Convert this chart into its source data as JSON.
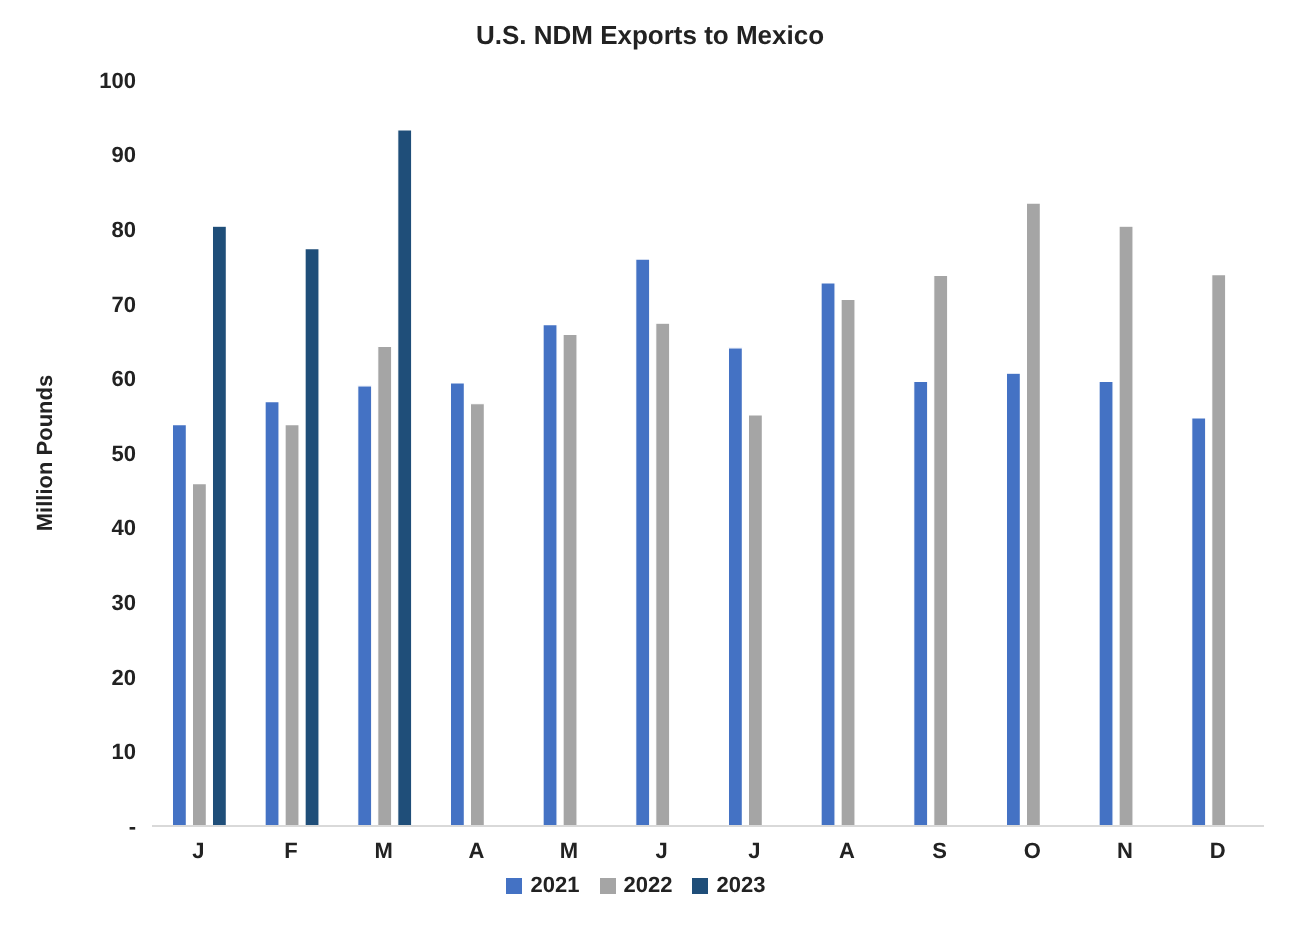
{
  "chart_data": {
    "type": "bar",
    "title": "U.S. NDM Exports to Mexico",
    "ylabel": "Million Pounds",
    "categories": [
      "J",
      "F",
      "M",
      "A",
      "M",
      "J",
      "J",
      "A",
      "S",
      "O",
      "N",
      "D"
    ],
    "series": [
      {
        "name": "2021",
        "color": "#4472c4",
        "values": [
          53.8,
          56.9,
          59.0,
          59.4,
          67.2,
          76.0,
          64.1,
          72.8,
          59.6,
          60.7,
          59.6,
          54.7
        ]
      },
      {
        "name": "2022",
        "color": "#a5a5a5",
        "values": [
          45.9,
          53.8,
          64.3,
          56.6,
          65.9,
          67.4,
          55.1,
          70.6,
          73.8,
          83.5,
          80.4,
          73.9
        ]
      },
      {
        "name": "2023",
        "color": "#1f4e79",
        "values": [
          80.4,
          77.4,
          93.3,
          null,
          null,
          null,
          null,
          null,
          null,
          null,
          null,
          null
        ]
      }
    ],
    "ylim": [
      0,
      100
    ],
    "yticks": [
      {
        "value": 0,
        "label": "-"
      },
      10,
      20,
      30,
      40,
      50,
      60,
      70,
      80,
      90,
      100
    ],
    "grid": false,
    "legend": "bottom"
  }
}
